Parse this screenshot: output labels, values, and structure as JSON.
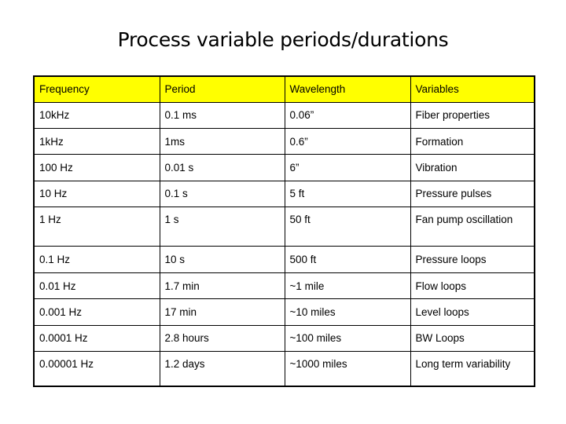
{
  "title": "Process variable periods/durations",
  "table": {
    "headers": [
      "Frequency",
      "Period",
      "Wavelength",
      "Variables"
    ],
    "rows": [
      [
        "10kHz",
        "0.1 ms",
        "0.06”",
        "Fiber properties"
      ],
      [
        "1kHz",
        "1ms",
        "0.6”",
        "Formation"
      ],
      [
        "100 Hz",
        "0.01 s",
        "6”",
        "Vibration"
      ],
      [
        "10 Hz",
        "0.1 s",
        "5 ft",
        "Pressure pulses"
      ],
      [
        "1 Hz",
        "1 s",
        "50 ft",
        "Fan pump oscillation"
      ],
      [
        "0.1 Hz",
        "10 s",
        "500 ft",
        "Pressure loops"
      ],
      [
        "0.01 Hz",
        "1.7 min",
        "~1 mile",
        "Flow loops"
      ],
      [
        "0.001 Hz",
        "17 min",
        "~10 miles",
        "Level loops"
      ],
      [
        "0.0001 Hz",
        "2.8 hours",
        "~100 miles",
        "BW Loops"
      ],
      [
        "0.00001 Hz",
        "1.2 days",
        "~1000 miles",
        "Long term variability"
      ]
    ]
  },
  "colors": {
    "header_bg": "#ffff00",
    "border": "#000000",
    "text": "#000000",
    "background": "#ffffff"
  }
}
